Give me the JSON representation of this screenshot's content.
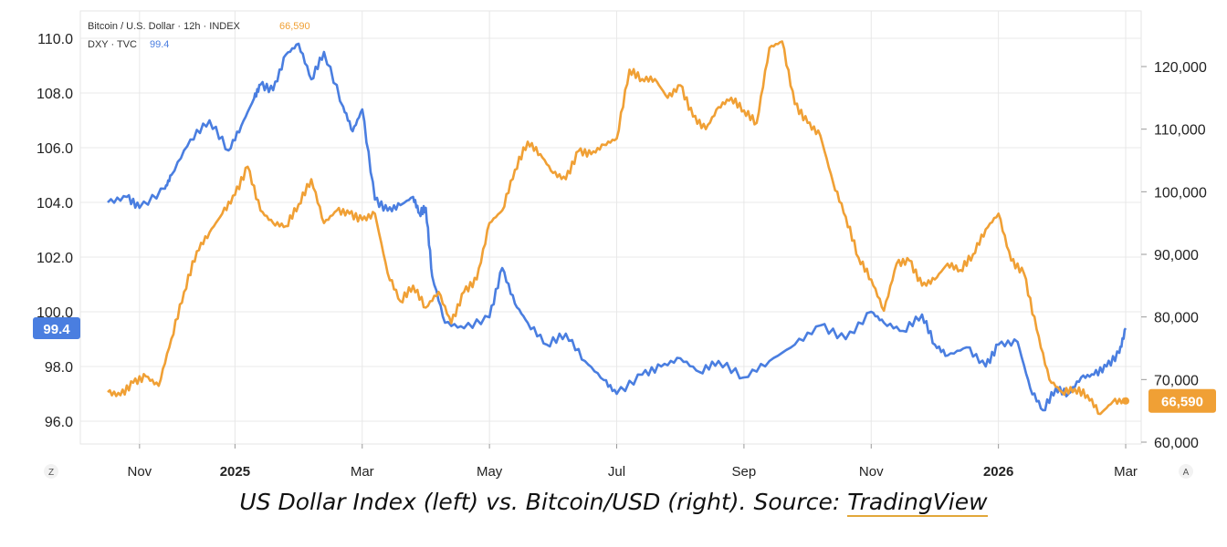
{
  "chart_data": {
    "type": "line",
    "legend": {
      "btc_label": "Bitcoin / U.S. Dollar · 12h · INDEX",
      "btc_value": "66,590",
      "dxy_label": "DXY · TVC",
      "dxy_value": "99.4"
    },
    "left_axis": {
      "ticks": [
        "110.0",
        "108.0",
        "106.0",
        "104.0",
        "102.0",
        "100.0",
        "98.0",
        "96.0"
      ],
      "tick_values": [
        110,
        108,
        106,
        104,
        102,
        100,
        98,
        96
      ],
      "range": [
        95.0,
        111.0
      ]
    },
    "right_axis": {
      "ticks": [
        "120,000",
        "110,000",
        "100,000",
        "90,000",
        "80,000",
        "70,000",
        "60,000"
      ],
      "tick_values": [
        120000,
        110000,
        100000,
        90000,
        80000,
        70000,
        60000
      ],
      "range": [
        58000,
        128000
      ]
    },
    "x_axis": {
      "labels": [
        "Nov",
        "2025",
        "Mar",
        "May",
        "Jul",
        "Sep",
        "Nov",
        "2026",
        "Mar"
      ],
      "bold": [
        false,
        true,
        false,
        false,
        false,
        false,
        false,
        true,
        false
      ],
      "positions": [
        0.5,
        2,
        4,
        6,
        8,
        10,
        12,
        14,
        16
      ],
      "range": [
        0,
        16.1
      ]
    },
    "series": [
      {
        "name": "DXY",
        "axis": "left",
        "color": "#4a7ee0",
        "t": [
          0,
          0.3,
          0.5,
          0.9,
          1.0,
          1.3,
          1.6,
          1.9,
          2.1,
          2.3,
          2.4,
          2.6,
          2.8,
          3.0,
          3.2,
          3.4,
          3.7,
          3.85,
          4.0,
          4.2,
          4.4,
          4.6,
          4.8,
          4.9,
          5.0,
          5.1,
          5.3,
          5.6,
          6.0,
          6.2,
          6.4,
          6.6,
          6.9,
          7.2,
          7.5,
          7.8,
          8.0,
          8.4,
          8.7,
          9.0,
          9.3,
          9.6,
          10.0,
          10.4,
          10.8,
          11.2,
          11.6,
          12.0,
          12.2,
          12.5,
          12.8,
          13.0,
          13.2,
          13.5,
          13.8,
          14.0,
          14.3,
          14.5,
          14.7,
          14.9,
          15.1,
          15.3,
          15.5,
          15.7,
          15.9,
          16.0
        ],
        "values": [
          104.0,
          104.2,
          103.8,
          104.5,
          105.0,
          106.3,
          107.0,
          105.9,
          106.8,
          107.8,
          108.3,
          108.1,
          109.4,
          109.8,
          108.5,
          109.5,
          107.5,
          106.6,
          107.4,
          104.1,
          103.7,
          103.9,
          104.2,
          103.6,
          103.8,
          101.3,
          99.6,
          99.4,
          99.8,
          101.6,
          100.3,
          99.6,
          98.8,
          99.2,
          98.2,
          97.5,
          97.0,
          97.7,
          98.0,
          98.3,
          97.8,
          98.2,
          97.6,
          98.2,
          98.8,
          99.5,
          99.0,
          100.0,
          99.6,
          99.3,
          99.9,
          98.8,
          98.4,
          98.7,
          98.0,
          98.8,
          98.9,
          97.2,
          96.4,
          97.2,
          97.0,
          97.6,
          97.7,
          98.0,
          98.5,
          99.4
        ]
      },
      {
        "name": "BTC/USD",
        "axis": "right",
        "color": "#f0a035",
        "t": [
          0,
          0.2,
          0.4,
          0.6,
          0.8,
          1.0,
          1.2,
          1.4,
          1.6,
          1.8,
          2.0,
          2.2,
          2.4,
          2.6,
          2.8,
          3.0,
          3.2,
          3.4,
          3.6,
          3.8,
          4.0,
          4.2,
          4.4,
          4.6,
          4.8,
          5.0,
          5.2,
          5.4,
          5.6,
          5.8,
          6.0,
          6.2,
          6.4,
          6.6,
          6.8,
          7.0,
          7.2,
          7.4,
          7.6,
          7.8,
          8.0,
          8.2,
          8.4,
          8.6,
          8.8,
          9.0,
          9.2,
          9.4,
          9.6,
          9.8,
          10.0,
          10.2,
          10.4,
          10.6,
          10.8,
          11.0,
          11.2,
          11.4,
          11.6,
          11.8,
          12.0,
          12.2,
          12.4,
          12.6,
          12.8,
          13.0,
          13.2,
          13.4,
          13.6,
          13.8,
          14.0,
          14.2,
          14.4,
          14.6,
          14.8,
          15.0,
          15.2,
          15.4,
          15.6,
          15.8,
          16.0
        ],
        "values": [
          68000,
          67500,
          69500,
          70500,
          69000,
          76500,
          84000,
          90500,
          93500,
          96500,
          99500,
          104000,
          97000,
          95000,
          94500,
          98000,
          102000,
          95000,
          97000,
          96500,
          95500,
          96500,
          87000,
          82500,
          85000,
          81500,
          84000,
          79000,
          84000,
          86000,
          95000,
          97000,
          103500,
          108000,
          106000,
          103000,
          102000,
          106500,
          106000,
          107500,
          108500,
          119500,
          118000,
          118000,
          115000,
          117000,
          112000,
          110000,
          113500,
          115000,
          113000,
          111000,
          123000,
          124000,
          114000,
          111000,
          109000,
          101500,
          96000,
          89500,
          86000,
          81000,
          88500,
          89000,
          85000,
          86000,
          88500,
          87500,
          90000,
          94000,
          96500,
          89000,
          87000,
          78000,
          70000,
          68000,
          68500,
          67500,
          64500,
          66500,
          66590
        ]
      }
    ],
    "last_labels": {
      "dxy": "99.4",
      "btc": "66,590"
    },
    "corner_labels": {
      "left": "Z",
      "right": "A"
    }
  },
  "caption": {
    "text": "US Dollar Index (left) vs. Bitcoin/USD (right). Source: ",
    "link": "TradingView"
  }
}
